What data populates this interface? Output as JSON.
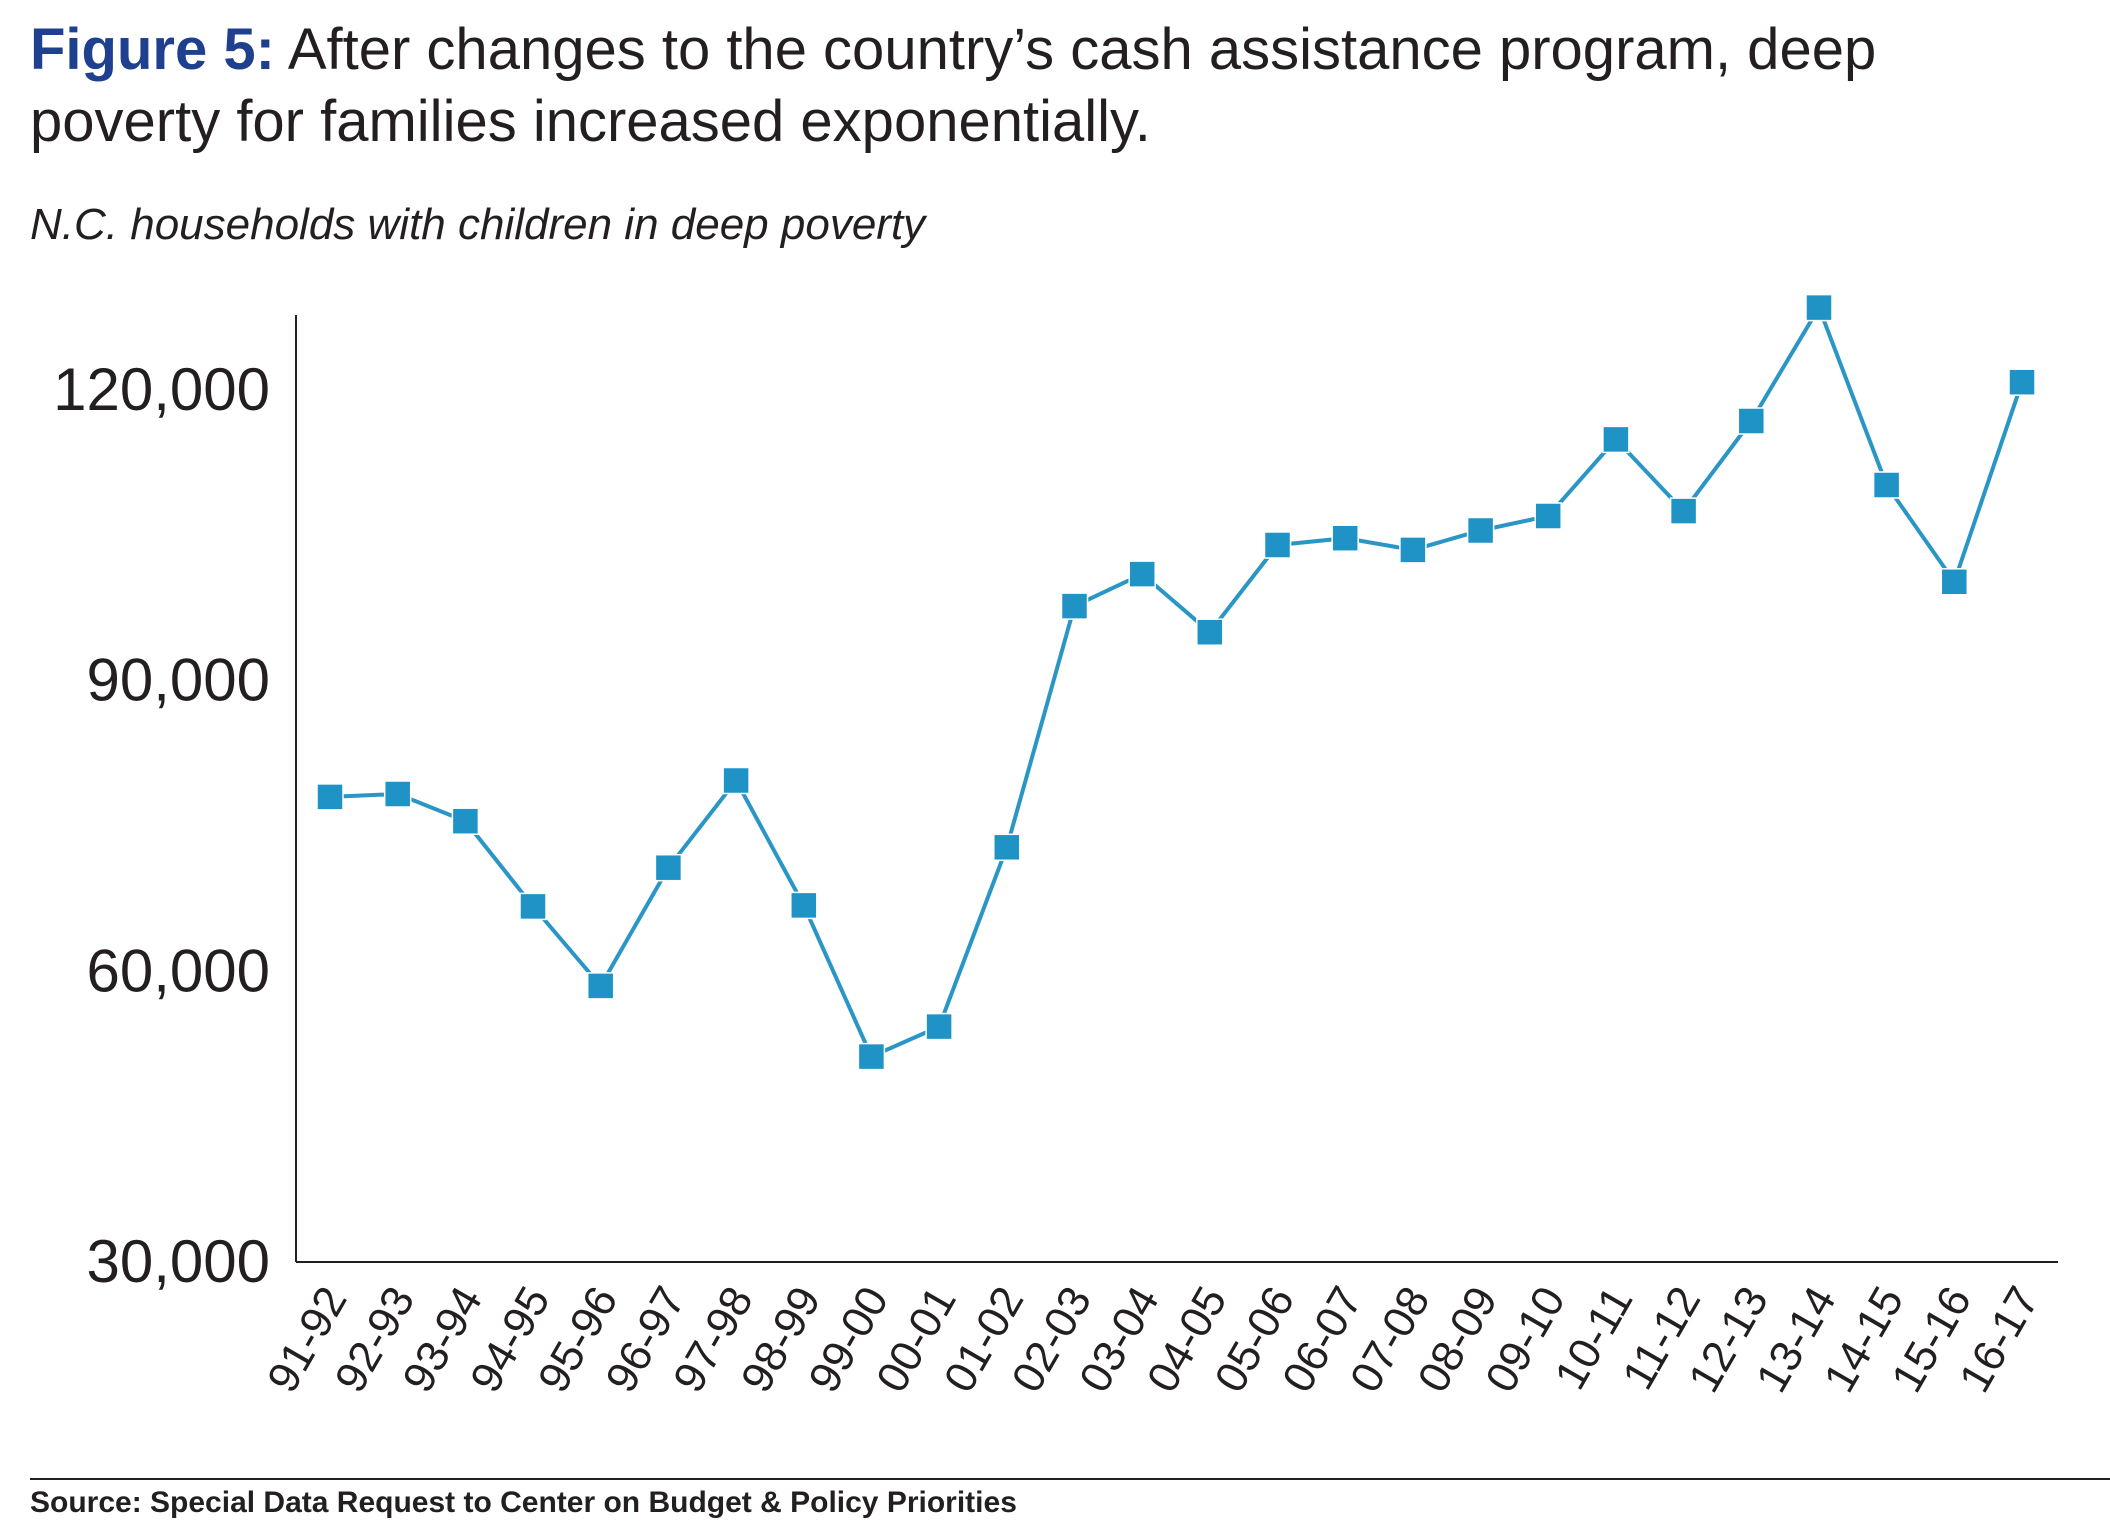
{
  "figure": {
    "label": "Figure 5:",
    "title": " After changes to the country’s cash assistance program, deep poverty for families increased exponentially.",
    "subtitle": "N.C. households with children in deep poverty",
    "source": "Source: Special Data Request to Center on Budget & Policy Priorities"
  },
  "colors": {
    "line": "#2a96c6",
    "marker": "#1f93c6",
    "axis": "#231f20",
    "title_label": "#1f3f8f"
  },
  "chart_data": {
    "type": "line",
    "title": "N.C. households with children in deep poverty",
    "xlabel": "",
    "ylabel": "",
    "ylim": [
      30000,
      128000
    ],
    "yticks": [
      30000,
      60000,
      90000,
      120000
    ],
    "ytick_labels": [
      "30,000",
      "60,000",
      "90,000",
      "120,000"
    ],
    "grid": false,
    "legend": "none",
    "marker": "square",
    "categories": [
      "91-92",
      "92-93",
      "93-94",
      "94-95",
      "95-96",
      "96-97",
      "97-98",
      "98-99",
      "99-00",
      "00-01",
      "01-02",
      "02-03",
      "03-04",
      "04-05",
      "05-06",
      "06-07",
      "07-08",
      "08-09",
      "09-10",
      "10-11",
      "11-12",
      "12-13",
      "13-14",
      "14-15",
      "15-16",
      "16-17"
    ],
    "series": [
      {
        "values": [
          78000,
          78300,
          75500,
          66700,
          58500,
          70700,
          79700,
          66800,
          51200,
          54300,
          72800,
          97700,
          101000,
          95000,
          104000,
          104700,
          103500,
          105500,
          107000,
          114900,
          107500,
          116800,
          128500,
          110200,
          100200,
          120800
        ]
      }
    ]
  }
}
